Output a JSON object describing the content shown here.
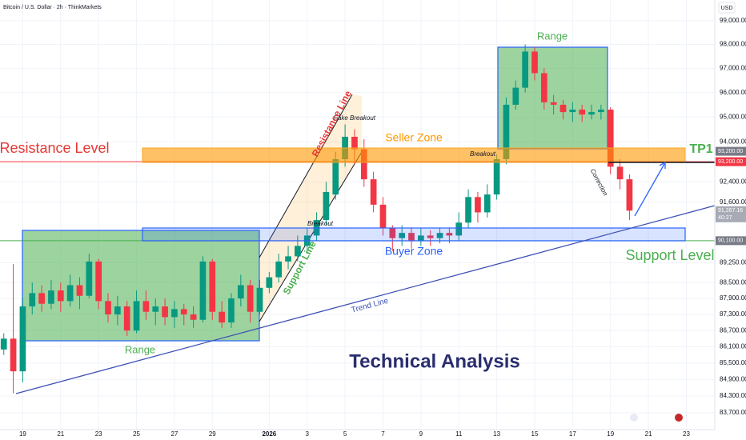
{
  "chart_data": {
    "type": "candlestick",
    "title": "Bitcoin / U.S. Dollar · 2h · ThinkMarkets",
    "currency": "USD",
    "log_scale": true,
    "up_color": "#089981",
    "down_color": "#f23645",
    "x": [
      -1,
      -0.5,
      0,
      0.5,
      1,
      1.5,
      2,
      2.5,
      3,
      3.5,
      4,
      4.5,
      5,
      5.5,
      6,
      6.5,
      7,
      7.5,
      8,
      8.5,
      9,
      9.5,
      10,
      10.5,
      11,
      11.5,
      12,
      12.5,
      13,
      13.5,
      14,
      14.5,
      15,
      15.5,
      16,
      16.5,
      17,
      17.5,
      18,
      18.5,
      19,
      19.5,
      20,
      20.5,
      21,
      21.5,
      22,
      22.5,
      23,
      23.5,
      24,
      24.5,
      25,
      25.5,
      26,
      26.5,
      27,
      27.5,
      28,
      28.5,
      29,
      29.5,
      30,
      30.5,
      31,
      31.5,
      32
    ],
    "open": [
      86000,
      86400,
      85200,
      87600,
      88100,
      87700,
      88200,
      87800,
      88400,
      88000,
      89300,
      87800,
      87300,
      87600,
      86700,
      87800,
      87400,
      87600,
      87200,
      87500,
      87300,
      87100,
      89300,
      87400,
      87000,
      87900,
      88400,
      87400,
      88300,
      88700,
      89300,
      89500,
      89900,
      90300,
      90900,
      91900,
      93300,
      94200,
      93700,
      92500,
      91500,
      90600,
      90200,
      90400,
      90100,
      90300,
      90200,
      90400,
      90300,
      90800,
      91800,
      91200,
      91900,
      93300,
      95500,
      96200,
      97700,
      96800,
      95600,
      95500,
      95200,
      95300,
      95100,
      95200,
      95300,
      93000,
      92500
    ],
    "high": [
      86600,
      89200,
      87900,
      88500,
      88400,
      88600,
      88500,
      88800,
      88700,
      89600,
      89400,
      88100,
      88000,
      87800,
      88200,
      88200,
      87900,
      87900,
      87800,
      87700,
      87600,
      89500,
      89400,
      87800,
      88100,
      88800,
      88600,
      88600,
      88900,
      89600,
      89900,
      90300,
      90600,
      91200,
      92400,
      93600,
      94700,
      94500,
      94100,
      92800,
      91800,
      90700,
      90700,
      90600,
      90600,
      90500,
      90600,
      90600,
      91200,
      92100,
      92000,
      92300,
      93500,
      95800,
      96500,
      98000,
      97900,
      97000,
      95900,
      95700,
      95600,
      95500,
      95500,
      95500,
      95400,
      93300,
      92700
    ],
    "low": [
      85800,
      84400,
      84800,
      87300,
      87400,
      87500,
      87400,
      87600,
      87500,
      87900,
      87500,
      87000,
      86900,
      86500,
      86600,
      87100,
      86900,
      86900,
      86800,
      86900,
      86800,
      87000,
      87100,
      86800,
      86800,
      87600,
      87000,
      87300,
      88100,
      88500,
      89000,
      89300,
      89600,
      90100,
      90700,
      91700,
      93000,
      93100,
      92200,
      91200,
      90300,
      89700,
      89900,
      89800,
      89900,
      89900,
      90000,
      90000,
      90100,
      90600,
      90800,
      91000,
      91700,
      93100,
      95300,
      96000,
      96500,
      95300,
      95100,
      94900,
      94800,
      94800,
      94900,
      94900,
      92700,
      92100,
      90900
    ],
    "close": [
      86400,
      85200,
      87600,
      88100,
      87700,
      88200,
      87800,
      88400,
      88000,
      89300,
      87800,
      87300,
      87600,
      86700,
      87800,
      87400,
      87600,
      87200,
      87500,
      87300,
      87100,
      89300,
      87400,
      87000,
      87900,
      88400,
      87400,
      88300,
      88700,
      89300,
      89500,
      89900,
      90300,
      90900,
      92000,
      93300,
      94200,
      93700,
      92500,
      91500,
      90600,
      90200,
      90400,
      90100,
      90300,
      90200,
      90400,
      90300,
      90800,
      91800,
      91200,
      91900,
      93300,
      95500,
      96200,
      97700,
      96800,
      95600,
      95500,
      95200,
      95300,
      95100,
      95200,
      95300,
      93000,
      92500,
      91267.16
    ],
    "xlim": [
      -1.2,
      36.5
    ],
    "ylim": [
      83100,
      99880
    ],
    "xticks": [
      {
        "value": 0,
        "label": "19"
      },
      {
        "value": 2,
        "label": "21"
      },
      {
        "value": 4,
        "label": "23"
      },
      {
        "value": 6,
        "label": "25"
      },
      {
        "value": 8,
        "label": "27"
      },
      {
        "value": 10,
        "label": "29"
      },
      {
        "value": 13,
        "label": "2026"
      },
      {
        "value": 15,
        "label": "3"
      },
      {
        "value": 17,
        "label": "5"
      },
      {
        "value": 19,
        "label": "7"
      },
      {
        "value": 21,
        "label": "9"
      },
      {
        "value": 23,
        "label": "11"
      },
      {
        "value": 25,
        "label": "13"
      },
      {
        "value": 27,
        "label": "15"
      },
      {
        "value": 29,
        "label": "17"
      },
      {
        "value": 31,
        "label": "19"
      },
      {
        "value": 33,
        "label": "21"
      },
      {
        "value": 35,
        "label": "23"
      }
    ],
    "yticks": [
      {
        "value": 99000,
        "label": "99,000.00"
      },
      {
        "value": 98000,
        "label": "98,000.00"
      },
      {
        "value": 97000,
        "label": "97,000.00"
      },
      {
        "value": 96000,
        "label": "96,000.00"
      },
      {
        "value": 95000,
        "label": "95,000.00"
      },
      {
        "value": 94000,
        "label": "94,000.00"
      },
      {
        "value": 92400,
        "label": "92,400.00"
      },
      {
        "value": 91600,
        "label": "91,600.00"
      },
      {
        "value": 89250,
        "label": "89,250.00"
      },
      {
        "value": 88500,
        "label": "88,500.00"
      },
      {
        "value": 87900,
        "label": "87,900.00"
      },
      {
        "value": 87300,
        "label": "87,300.00"
      },
      {
        "value": 86700,
        "label": "86,700.00"
      },
      {
        "value": 86100,
        "label": "86,100.00"
      },
      {
        "value": 85500,
        "label": "85,500.00"
      },
      {
        "value": 84900,
        "label": "84,900.00"
      },
      {
        "value": 84300,
        "label": "84,300.00"
      },
      {
        "value": 83700,
        "label": "83,700.00"
      }
    ],
    "levels": [
      {
        "value": 93200,
        "color": "#f23645"
      },
      {
        "value": 90100,
        "color": "#4caf50"
      }
    ],
    "price_tags": [
      {
        "value": 93200,
        "label": "93,200.00",
        "color": "#787b86"
      },
      {
        "value": 93200,
        "label": "93,200.00",
        "color": "#f23645"
      },
      {
        "value": 91267.16,
        "label": "91,267.16",
        "color": "#a8abb5",
        "countdown": "40:27"
      },
      {
        "value": 90100,
        "label": "90,100.00",
        "color": "#787b86"
      }
    ],
    "annotations": [
      "Resistance Level",
      "Seller Zone",
      "Range",
      "Range",
      "TP1",
      "Fake Breakout",
      "Breakout",
      "Breakout",
      "Resistance Line",
      "Support Line",
      "Correction",
      "Buyer Zone",
      "Support Level",
      "Trend Line",
      "Technical Analysis"
    ]
  }
}
